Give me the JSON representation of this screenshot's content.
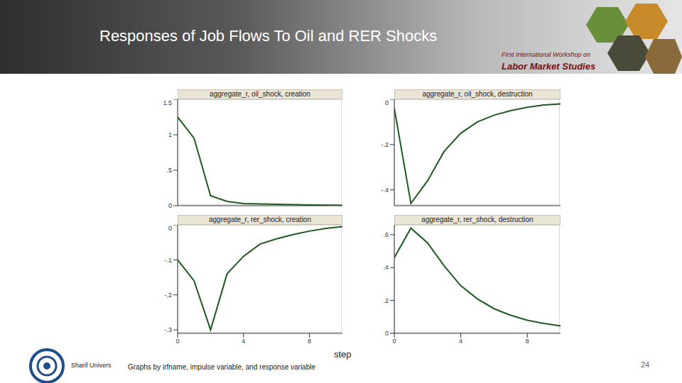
{
  "title": "Responses of Job Flows To Oil and RER Shocks",
  "logo_text": [
    "First International Workshop on",
    "Labor Market Studies"
  ],
  "x_label": "step",
  "note": "Graphs by irfname, impulse variable, and response variable",
  "footer": "Sharif Univers",
  "page": "24",
  "chart_data": [
    {
      "type": "line",
      "title": "aggregate_r, oil_shock, creation",
      "x": [
        0,
        1,
        2,
        3,
        4,
        5,
        6,
        7,
        8,
        9,
        10
      ],
      "values": [
        1.25,
        0.95,
        0.14,
        0.06,
        0.03,
        0.025,
        0.02,
        0.015,
        0.01,
        0.008,
        0.005
      ],
      "color": "#1e5b1e",
      "xlim": [
        0,
        10
      ],
      "xticks": [
        0,
        4,
        8
      ],
      "ylim": [
        0,
        1.5
      ],
      "yticks": [
        0,
        {
          "value": 0.5,
          "label": ".5"
        },
        1,
        1.5
      ],
      "tick_labels": "y"
    },
    {
      "type": "line",
      "title": "aggregate_r, oil_shock, destruction",
      "x": [
        0,
        1,
        2,
        3,
        4,
        5,
        6,
        7,
        8,
        9,
        10
      ],
      "values": [
        -0.04,
        -0.46,
        -0.36,
        -0.23,
        -0.15,
        -0.1,
        -0.07,
        -0.05,
        -0.035,
        -0.025,
        -0.02
      ],
      "color": "#1e5b1e",
      "xlim": [
        0,
        10
      ],
      "xticks": [
        0,
        4,
        8
      ],
      "ylim": [
        -0.47,
        0
      ],
      "yticks": [
        {
          "value": -0.4,
          "label": "-.4"
        },
        {
          "value": -0.2,
          "label": "-.2"
        },
        0
      ],
      "tick_labels": "y"
    },
    {
      "type": "line",
      "title": "aggregate_r, rer_shock, creation",
      "x": [
        0,
        1,
        2,
        3,
        4,
        5,
        6,
        7,
        8,
        9,
        10
      ],
      "values": [
        -0.1,
        -0.16,
        -0.3,
        -0.14,
        -0.09,
        -0.055,
        -0.04,
        -0.028,
        -0.018,
        -0.01,
        -0.005
      ],
      "color": "#1e5b1e",
      "xlim": [
        0,
        10
      ],
      "xticks": [
        0,
        4,
        8
      ],
      "ylim": [
        -0.31,
        0
      ],
      "yticks": [
        {
          "value": -0.3,
          "label": "-.3"
        },
        {
          "value": -0.2,
          "label": "-.2"
        },
        {
          "value": -0.1,
          "label": "-.1"
        },
        0
      ]
    },
    {
      "type": "line",
      "title": "aggregate_r, rer_shock, destruction",
      "x": [
        0,
        1,
        2,
        3,
        4,
        5,
        6,
        7,
        8,
        9,
        10
      ],
      "values": [
        0.46,
        0.64,
        0.55,
        0.41,
        0.29,
        0.21,
        0.15,
        0.11,
        0.08,
        0.06,
        0.045
      ],
      "color": "#1e5b1e",
      "xlim": [
        0,
        10
      ],
      "xticks": [
        0,
        4,
        8
      ],
      "ylim": [
        0,
        0.66
      ],
      "yticks": [
        0,
        {
          "value": 0.2,
          "label": ".2"
        },
        {
          "value": 0.4,
          "label": ".4"
        },
        {
          "value": 0.6,
          "label": ".6"
        }
      ]
    }
  ]
}
